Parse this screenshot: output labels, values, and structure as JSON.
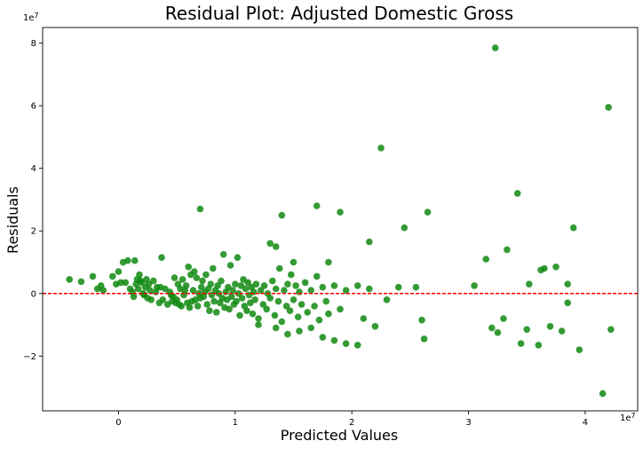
{
  "chart_data": {
    "type": "scatter",
    "title": "Residual Plot: Adjusted Domestic Gross",
    "xlabel": "Predicted Values",
    "ylabel": "Residuals",
    "x_offset_label": "1e7",
    "y_offset_label": "1e7",
    "xlim": [
      -0.65,
      4.45
    ],
    "ylim": [
      -3.75,
      8.5
    ],
    "x_ticks": [
      0,
      1,
      2,
      3,
      4
    ],
    "x_tick_labels": [
      "0",
      "1",
      "2",
      "3",
      "4"
    ],
    "y_ticks": [
      -2,
      0,
      2,
      4,
      6,
      8
    ],
    "y_tick_labels": [
      "−2",
      "0",
      "2",
      "4",
      "6",
      "8"
    ],
    "reference_line": {
      "y": 0,
      "color": "#ff0000",
      "style": "dashed"
    },
    "point_color": "#108a10",
    "grid": false,
    "units_note": "values in units of 1e7",
    "points": [
      [
        -0.42,
        0.45
      ],
      [
        -0.32,
        0.38
      ],
      [
        -0.22,
        0.55
      ],
      [
        -0.18,
        0.15
      ],
      [
        -0.15,
        0.25
      ],
      [
        -0.13,
        0.1
      ],
      [
        -0.05,
        0.55
      ],
      [
        -0.02,
        0.3
      ],
      [
        0.0,
        0.7
      ],
      [
        0.02,
        0.35
      ],
      [
        0.04,
        1.0
      ],
      [
        0.06,
        0.35
      ],
      [
        0.08,
        1.05
      ],
      [
        0.1,
        0.15
      ],
      [
        0.12,
        0.05
      ],
      [
        0.13,
        -0.1
      ],
      [
        0.14,
        1.05
      ],
      [
        0.15,
        0.3
      ],
      [
        0.16,
        0.45
      ],
      [
        0.17,
        0.15
      ],
      [
        0.18,
        0.6
      ],
      [
        0.19,
        0.4
      ],
      [
        0.2,
        0.35
      ],
      [
        0.21,
        0.0
      ],
      [
        0.22,
        -0.05
      ],
      [
        0.23,
        0.2
      ],
      [
        0.24,
        0.45
      ],
      [
        0.25,
        -0.15
      ],
      [
        0.26,
        0.3
      ],
      [
        0.27,
        0.1
      ],
      [
        0.28,
        -0.2
      ],
      [
        0.3,
        0.4
      ],
      [
        0.32,
        0.05
      ],
      [
        0.33,
        0.2
      ],
      [
        0.35,
        -0.3
      ],
      [
        0.36,
        0.2
      ],
      [
        0.37,
        1.15
      ],
      [
        0.38,
        -0.2
      ],
      [
        0.4,
        0.15
      ],
      [
        0.42,
        -0.35
      ],
      [
        0.44,
        0.05
      ],
      [
        0.45,
        -0.05
      ],
      [
        0.46,
        -0.25
      ],
      [
        0.47,
        -0.1
      ],
      [
        0.48,
        0.5
      ],
      [
        0.49,
        -0.3
      ],
      [
        0.5,
        -0.2
      ],
      [
        0.51,
        0.3
      ],
      [
        0.52,
        -0.35
      ],
      [
        0.53,
        0.15
      ],
      [
        0.54,
        -0.4
      ],
      [
        0.55,
        0.45
      ],
      [
        0.56,
        -0.05
      ],
      [
        0.57,
        0.1
      ],
      [
        0.58,
        0.25
      ],
      [
        0.59,
        -0.3
      ],
      [
        0.6,
        0.85
      ],
      [
        0.61,
        -0.45
      ],
      [
        0.62,
        0.6
      ],
      [
        0.63,
        -0.25
      ],
      [
        0.64,
        0.1
      ],
      [
        0.65,
        0.7
      ],
      [
        0.66,
        -0.2
      ],
      [
        0.67,
        0.5
      ],
      [
        0.68,
        -0.4
      ],
      [
        0.69,
        0.0
      ],
      [
        0.7,
        -0.15
      ],
      [
        0.71,
        0.2
      ],
      [
        0.72,
        0.4
      ],
      [
        0.73,
        -0.1
      ],
      [
        0.74,
        0.05
      ],
      [
        0.75,
        0.6
      ],
      [
        0.76,
        -0.35
      ],
      [
        0.77,
        0.15
      ],
      [
        0.78,
        -0.55
      ],
      [
        0.79,
        0.3
      ],
      [
        0.8,
        -0.05
      ],
      [
        0.81,
        0.8
      ],
      [
        0.82,
        -0.25
      ],
      [
        0.83,
        0.1
      ],
      [
        0.84,
        -0.6
      ],
      [
        0.85,
        0.25
      ],
      [
        0.86,
        0.0
      ],
      [
        0.87,
        -0.3
      ],
      [
        0.88,
        0.4
      ],
      [
        0.89,
        -0.15
      ],
      [
        0.9,
        1.25
      ],
      [
        0.91,
        -0.45
      ],
      [
        0.92,
        0.05
      ],
      [
        0.93,
        -0.2
      ],
      [
        0.94,
        0.2
      ],
      [
        0.95,
        -0.5
      ],
      [
        0.96,
        0.9
      ],
      [
        0.97,
        -0.1
      ],
      [
        0.98,
        0.1
      ],
      [
        0.99,
        -0.35
      ],
      [
        1.0,
        0.3
      ],
      [
        1.01,
        -0.25
      ],
      [
        1.02,
        1.15
      ],
      [
        1.03,
        0.0
      ],
      [
        1.04,
        -0.7
      ],
      [
        1.05,
        0.25
      ],
      [
        1.06,
        -0.15
      ],
      [
        1.07,
        0.45
      ],
      [
        1.08,
        -0.4
      ],
      [
        1.09,
        0.15
      ],
      [
        1.1,
        -0.55
      ],
      [
        1.11,
        0.35
      ],
      [
        1.12,
        -0.05
      ],
      [
        1.13,
        -0.3
      ],
      [
        1.14,
        0.2
      ],
      [
        1.15,
        -0.65
      ],
      [
        1.16,
        0.05
      ],
      [
        1.17,
        -0.2
      ],
      [
        1.18,
        0.3
      ],
      [
        1.2,
        -0.8
      ],
      [
        1.22,
        0.1
      ],
      [
        1.24,
        -0.35
      ],
      [
        1.25,
        0.25
      ],
      [
        1.27,
        -0.5
      ],
      [
        1.28,
        0.0
      ],
      [
        1.3,
        -0.15
      ],
      [
        1.32,
        0.4
      ],
      [
        1.34,
        -0.7
      ],
      [
        1.35,
        0.15
      ],
      [
        1.37,
        -0.25
      ],
      [
        1.38,
        0.8
      ],
      [
        1.4,
        -0.9
      ],
      [
        1.42,
        0.1
      ],
      [
        1.44,
        -0.4
      ],
      [
        1.45,
        0.3
      ],
      [
        1.47,
        -0.55
      ],
      [
        1.48,
        0.6
      ],
      [
        1.5,
        -0.2
      ],
      [
        1.52,
        0.25
      ],
      [
        1.54,
        -0.75
      ],
      [
        1.55,
        0.05
      ],
      [
        1.57,
        -0.35
      ],
      [
        1.6,
        0.35
      ],
      [
        1.62,
        -0.6
      ],
      [
        1.65,
        0.1
      ],
      [
        1.68,
        -0.4
      ],
      [
        1.7,
        0.55
      ],
      [
        1.72,
        -0.85
      ],
      [
        1.75,
        0.2
      ],
      [
        1.78,
        -0.25
      ],
      [
        1.8,
        -0.65
      ],
      [
        1.85,
        0.25
      ],
      [
        1.9,
        -0.5
      ],
      [
        1.95,
        0.1
      ],
      [
        0.7,
        2.7
      ],
      [
        1.3,
        1.6
      ],
      [
        1.35,
        1.5
      ],
      [
        1.4,
        2.5
      ],
      [
        1.7,
        2.8
      ],
      [
        1.9,
        2.6
      ],
      [
        1.8,
        1.0
      ],
      [
        1.5,
        1.0
      ],
      [
        1.2,
        -1.0
      ],
      [
        1.35,
        -1.1
      ],
      [
        1.45,
        -1.3
      ],
      [
        1.55,
        -1.2
      ],
      [
        1.65,
        -1.1
      ],
      [
        1.75,
        -1.4
      ],
      [
        1.85,
        -1.5
      ],
      [
        1.95,
        -1.6
      ],
      [
        2.05,
        -1.65
      ],
      [
        2.1,
        -0.8
      ],
      [
        2.2,
        -1.05
      ],
      [
        2.05,
        0.25
      ],
      [
        2.15,
        0.15
      ],
      [
        2.3,
        -0.2
      ],
      [
        2.25,
        4.65
      ],
      [
        2.4,
        0.2
      ],
      [
        2.45,
        2.1
      ],
      [
        2.55,
        0.2
      ],
      [
        2.6,
        -0.85
      ],
      [
        2.62,
        -1.45
      ],
      [
        2.65,
        2.6
      ],
      [
        2.15,
        1.65
      ],
      [
        3.05,
        0.25
      ],
      [
        3.15,
        1.1
      ],
      [
        3.2,
        -1.1
      ],
      [
        3.25,
        -1.25
      ],
      [
        3.3,
        -0.8
      ],
      [
        3.33,
        1.4
      ],
      [
        3.45,
        -1.6
      ],
      [
        3.5,
        -1.15
      ],
      [
        3.6,
        -1.65
      ],
      [
        3.65,
        0.8
      ],
      [
        3.7,
        -1.05
      ],
      [
        3.75,
        0.85
      ],
      [
        3.8,
        -1.2
      ],
      [
        3.85,
        -0.3
      ],
      [
        3.9,
        2.1
      ],
      [
        3.95,
        -1.8
      ],
      [
        3.85,
        0.3
      ],
      [
        3.52,
        0.3
      ],
      [
        3.42,
        3.2
      ],
      [
        3.62,
        0.75
      ],
      [
        3.23,
        7.85
      ],
      [
        4.15,
        -3.2
      ],
      [
        4.2,
        5.95
      ],
      [
        4.22,
        -1.15
      ]
    ]
  }
}
